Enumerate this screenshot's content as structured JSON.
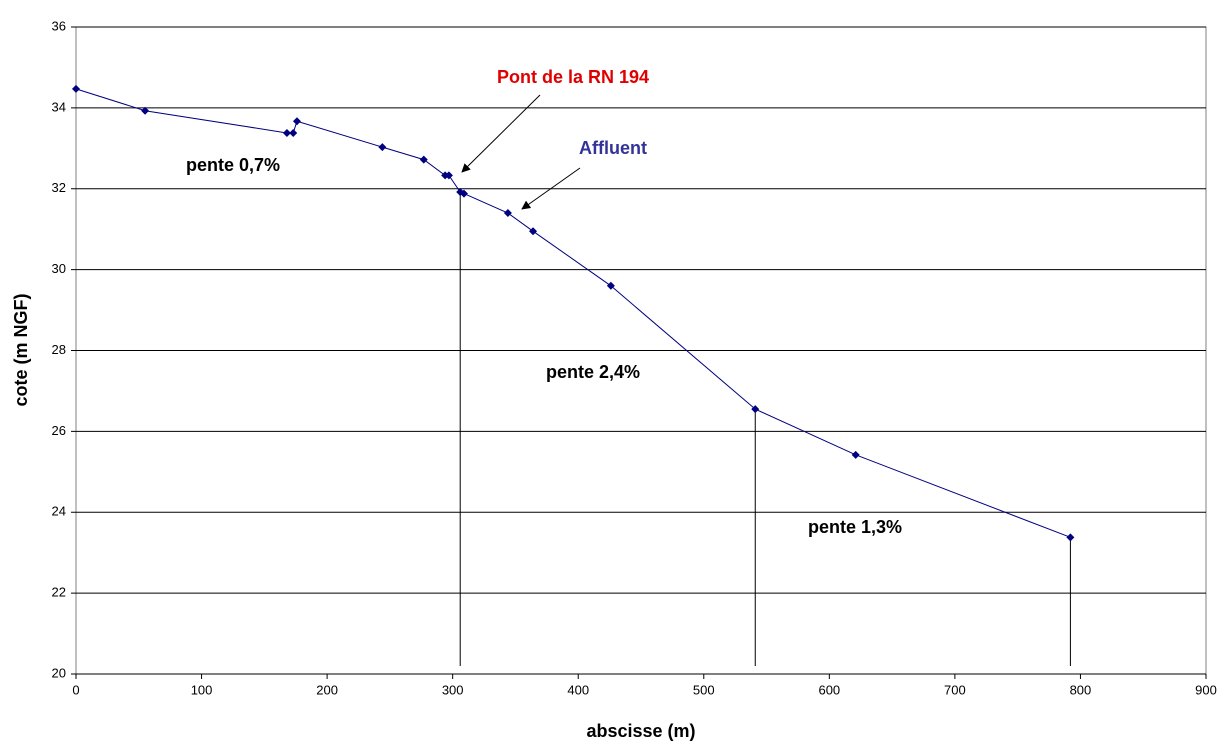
{
  "chart_data": {
    "type": "line",
    "xlabel": "abscisse (m)",
    "ylabel": "cote (m NGF)",
    "x": [
      0,
      55,
      168,
      173,
      176,
      244,
      277,
      294,
      297,
      306,
      309,
      344,
      364,
      426,
      541,
      621,
      792
    ],
    "series": [
      {
        "color": "#000080",
        "values": [
          34.47,
          33.93,
          33.38,
          33.38,
          33.67,
          33.03,
          32.72,
          32.33,
          32.33,
          31.92,
          31.88,
          31.4,
          30.95,
          29.6,
          26.55,
          25.42,
          23.38
        ]
      }
    ],
    "xlim": [
      0,
      900
    ],
    "xticks": [
      0,
      100,
      200,
      300,
      400,
      500,
      600,
      700,
      800,
      900
    ],
    "ylim": [
      20,
      36
    ],
    "yticks": [
      20,
      22,
      24,
      26,
      28,
      30,
      32,
      34,
      36
    ],
    "grid": true,
    "annotations": [
      "Pont de la RN 194",
      "Affluent",
      "pente 0,7%",
      "pente 2,4%",
      "pente 1,3%"
    ]
  }
}
